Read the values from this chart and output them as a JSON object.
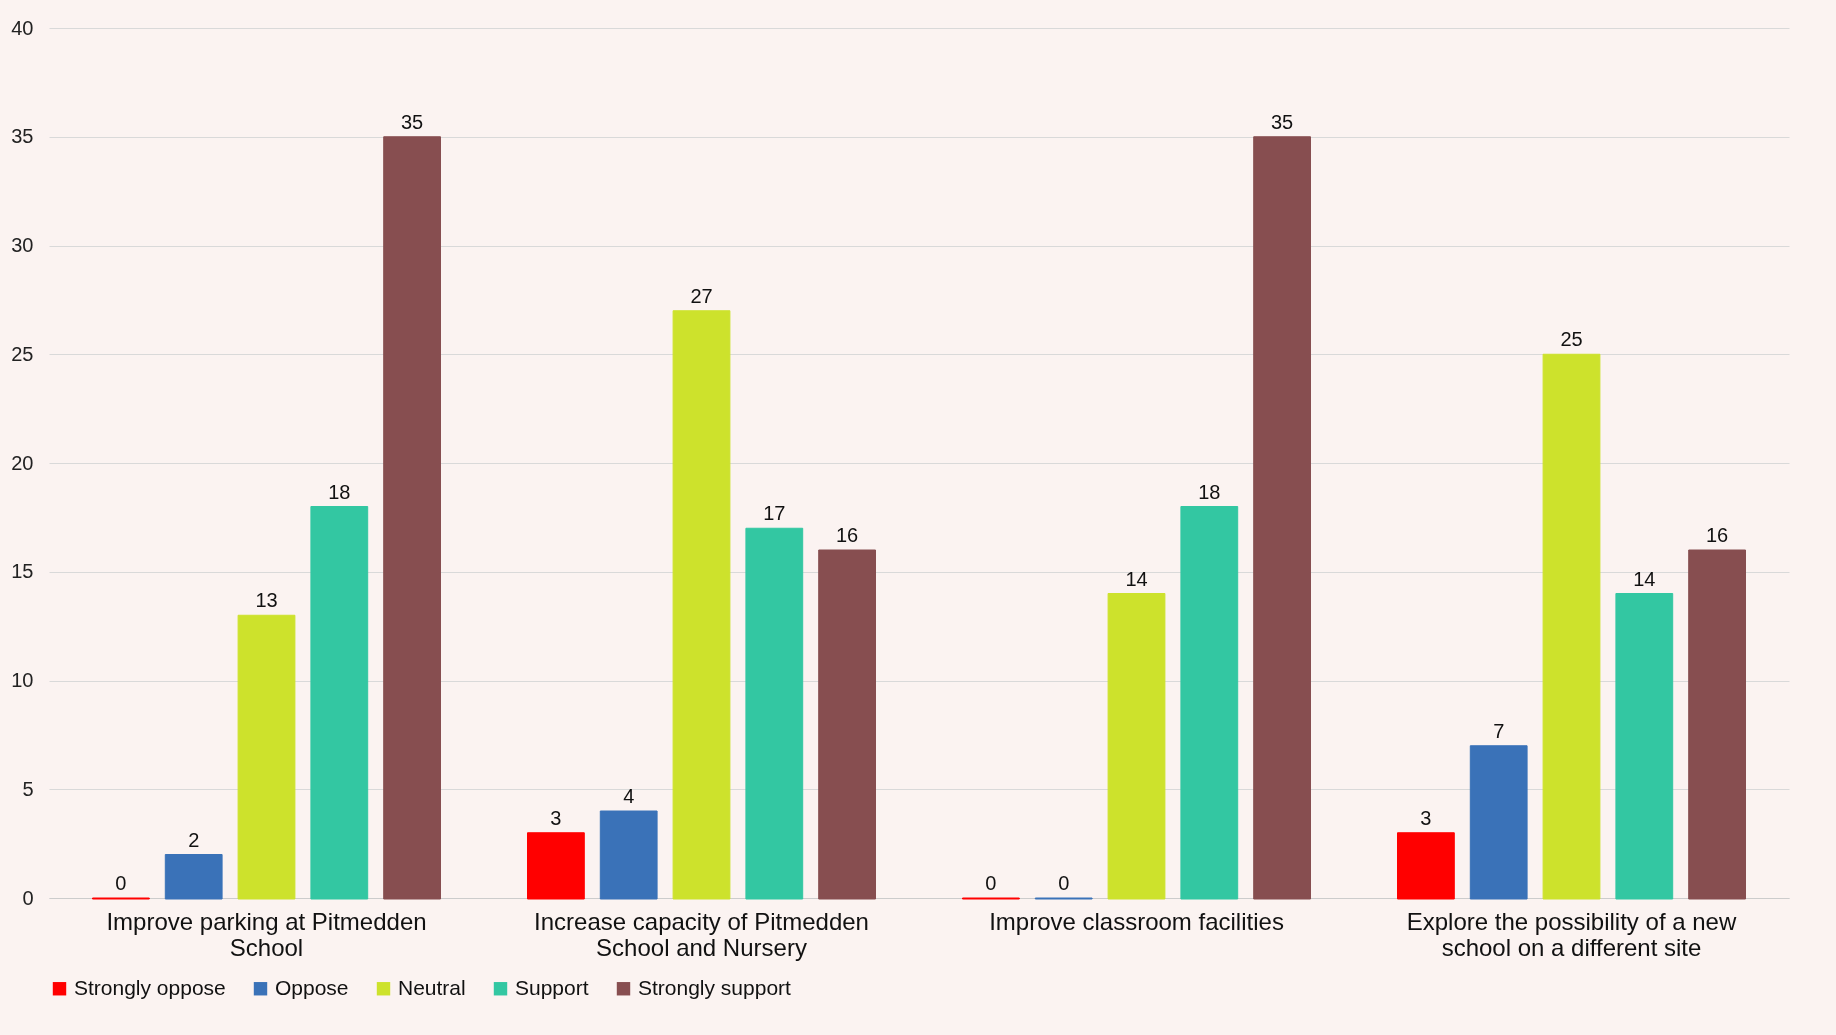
{
  "chart_data": {
    "type": "bar",
    "categories": [
      "Improve parking at Pitmedden School",
      "Increase capacity of Pitmedden School and Nursery",
      "Improve classroom facilities",
      "Explore the possibility of a new school on a different site"
    ],
    "series": [
      {
        "name": "Strongly oppose",
        "color": "#ff0000",
        "values": [
          0,
          3,
          0,
          3
        ]
      },
      {
        "name": "Oppose",
        "color": "#3a72b8",
        "values": [
          2,
          4,
          0,
          7
        ]
      },
      {
        "name": "Neutral",
        "color": "#cde22c",
        "values": [
          13,
          27,
          14,
          25
        ]
      },
      {
        "name": "Support",
        "color": "#33c7a2",
        "values": [
          18,
          17,
          18,
          14
        ]
      },
      {
        "name": "Strongly support",
        "color": "#874e50",
        "values": [
          35,
          16,
          35,
          16
        ]
      }
    ],
    "ylim": [
      0,
      40
    ],
    "yticks": [
      0,
      5,
      10,
      15,
      20,
      25,
      30,
      35,
      40
    ],
    "grid": "y",
    "legend": "bottom",
    "data_labels": true
  }
}
